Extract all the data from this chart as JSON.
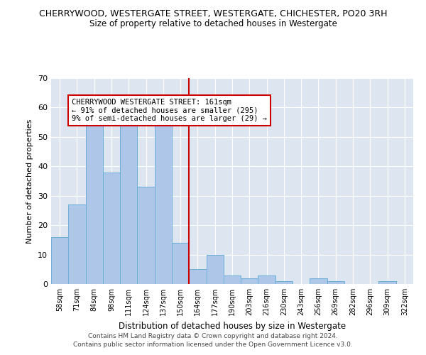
{
  "title": "CHERRYWOOD, WESTERGATE STREET, WESTERGATE, CHICHESTER, PO20 3RH",
  "subtitle": "Size of property relative to detached houses in Westergate",
  "xlabel": "Distribution of detached houses by size in Westergate",
  "ylabel": "Number of detached properties",
  "categories": [
    "58sqm",
    "71sqm",
    "84sqm",
    "98sqm",
    "111sqm",
    "124sqm",
    "137sqm",
    "150sqm",
    "164sqm",
    "177sqm",
    "190sqm",
    "203sqm",
    "216sqm",
    "230sqm",
    "243sqm",
    "256sqm",
    "269sqm",
    "282sqm",
    "296sqm",
    "309sqm",
    "322sqm"
  ],
  "values": [
    16,
    27,
    57,
    38,
    58,
    33,
    57,
    14,
    5,
    10,
    3,
    2,
    3,
    1,
    0,
    2,
    1,
    0,
    0,
    1,
    0
  ],
  "bar_color": "#aec6e8",
  "bar_edge_color": "#6baed6",
  "background_color": "#dde6f0",
  "vline_x": 7.5,
  "vline_color": "#cc0000",
  "annotation_text": "CHERRYWOOD WESTERGATE STREET: 161sqm\n← 91% of detached houses are smaller (295)\n9% of semi-detached houses are larger (29) →",
  "annotation_box_color": "#ffffff",
  "annotation_box_edge": "#cc0000",
  "ylim": [
    0,
    70
  ],
  "yticks": [
    0,
    10,
    20,
    30,
    40,
    50,
    60,
    70
  ],
  "footer1": "Contains HM Land Registry data © Crown copyright and database right 2024.",
  "footer2": "Contains public sector information licensed under the Open Government Licence v3.0."
}
